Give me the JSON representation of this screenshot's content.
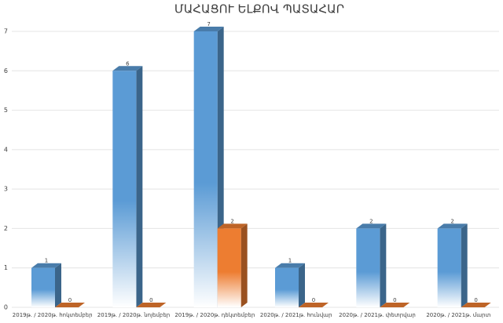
{
  "chart_data": {
    "type": "bar3d",
    "title": "ՄԱՀԱՑՈՒ ԵԼՔՈՎ ՊԱՏԱՀԱՐ",
    "categories": [
      "2019թ. / 2020թ. հոկտեմբեր",
      "2019թ. / 2020թ. նոյեմբեր",
      "2019թ. / 2020թ. դեկտեմբեր",
      "2020թ. / 2021թ. հունվար",
      "2020թ. / 2021թ. փետրվար",
      "2020թ. / 2021թ. մարտ"
    ],
    "series": [
      {
        "color": "#5b9bd5",
        "values": [
          1,
          6,
          7,
          1,
          2,
          2
        ]
      },
      {
        "color": "#ed7d31",
        "values": [
          0,
          0,
          2,
          0,
          0,
          0
        ]
      }
    ],
    "ylim": [
      0,
      7
    ],
    "yticks": [
      0,
      1,
      2,
      3,
      4,
      5,
      6,
      7
    ],
    "grid": true
  }
}
